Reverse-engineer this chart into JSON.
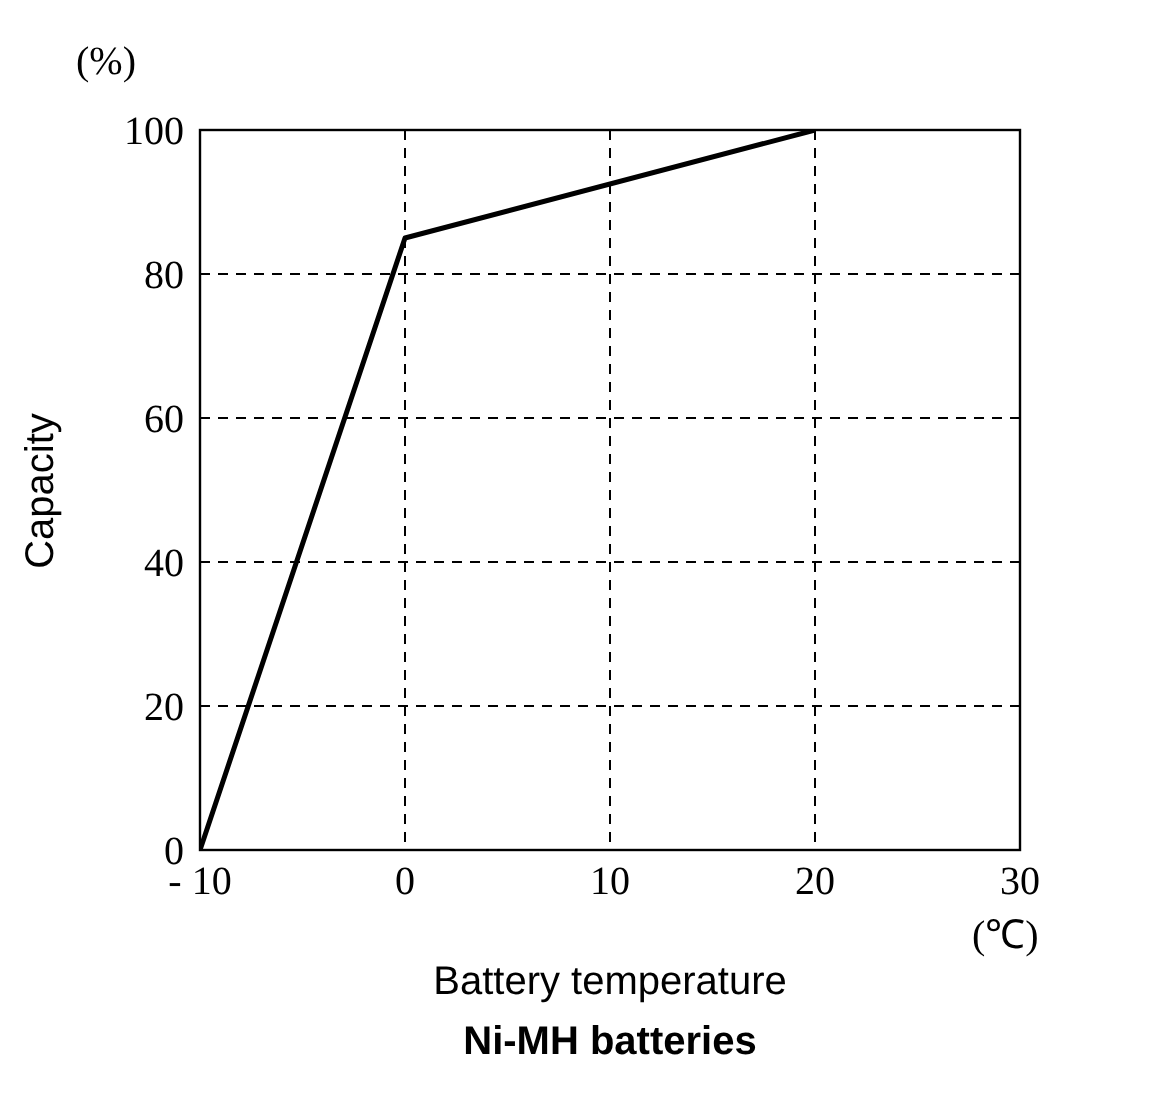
{
  "chart_data": {
    "type": "line",
    "title": "Ni-MH batteries",
    "xlabel": "Battery temperature",
    "ylabel": "Capacity",
    "annotations": [
      "(%)",
      "(℃)"
    ],
    "x": [
      -10,
      0,
      20
    ],
    "series": [
      {
        "color": "#000000",
        "values": [
          0,
          85,
          100
        ]
      }
    ],
    "xlim": [
      -10,
      30
    ],
    "xticks": [
      {
        "value": -10,
        "label": "- 10"
      },
      0,
      10,
      20,
      30
    ],
    "ylim": [
      0,
      100
    ],
    "yticks": [
      0,
      20,
      40,
      60,
      80,
      100
    ],
    "grid": true,
    "line_style": "solid",
    "marker": "none"
  }
}
